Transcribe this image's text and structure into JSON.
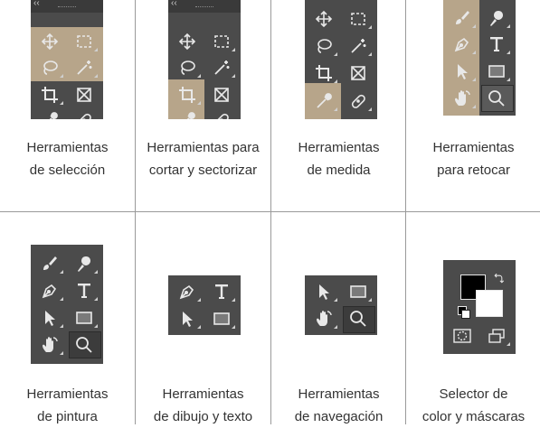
{
  "panel_chrome": {
    "collapse_glyph": "‹‹"
  },
  "captions": [
    {
      "line1": "Herramientas",
      "line2": "de selección"
    },
    {
      "line1": "Herramientas para",
      "line2": "cortar y sectorizar"
    },
    {
      "line1": "Herramientas",
      "line2": "de medida"
    },
    {
      "line1": "Herramientas",
      "line2": "para retocar"
    },
    {
      "line1": "Herramientas",
      "line2": "de pintura"
    },
    {
      "line1": "Herramientas",
      "line2": "de dibujo y texto"
    },
    {
      "line1": "Herramientas",
      "line2": "de navegación"
    },
    {
      "line1": "Selector de",
      "line2": "color y máscaras"
    }
  ],
  "colors": {
    "panel": "#4b4b4b",
    "highlight": "#b7a58a",
    "icon": "#e8e8e8"
  },
  "panels": [
    {
      "tool_group": "selection",
      "icons": [
        "move-icon",
        "marquee-icon",
        "lasso-icon",
        "magic-wand-icon",
        "crop-icon",
        "frame-icon",
        "eyedropper-icon",
        "healing-brush-icon"
      ]
    },
    {
      "tool_group": "crop-slice",
      "icons": [
        "move-icon",
        "marquee-icon",
        "lasso-icon",
        "magic-wand-icon",
        "crop-icon",
        "frame-icon",
        "eyedropper-icon",
        "healing-brush-icon"
      ]
    },
    {
      "tool_group": "measure",
      "icons": [
        "move-icon",
        "marquee-icon",
        "lasso-icon",
        "magic-wand-icon",
        "crop-icon",
        "frame-icon",
        "eyedropper-icon",
        "healing-brush-icon"
      ]
    },
    {
      "tool_group": "retouch",
      "icons": [
        "brush-icon",
        "blur-icon",
        "pen-icon",
        "type-icon",
        "path-select-icon",
        "rectangle-icon",
        "hand-icon",
        "zoom-icon"
      ]
    },
    {
      "tool_group": "paint",
      "icons": [
        "brush-icon",
        "blur-icon",
        "pen-icon",
        "type-icon",
        "path-select-icon",
        "rectangle-icon",
        "hand-icon",
        "zoom-icon"
      ]
    },
    {
      "tool_group": "draw-type",
      "icons": [
        "pen-icon",
        "type-icon",
        "path-select-icon",
        "rectangle-icon"
      ]
    },
    {
      "tool_group": "navigate",
      "icons": [
        "path-select-icon",
        "rectangle-icon",
        "hand-icon",
        "zoom-icon"
      ]
    },
    {
      "tool_group": "color-mask",
      "icons": [
        "foreground-swatch",
        "background-swatch",
        "swap-colors-icon",
        "default-colors-icon",
        "quick-mask-icon",
        "screen-mode-icon"
      ]
    }
  ]
}
